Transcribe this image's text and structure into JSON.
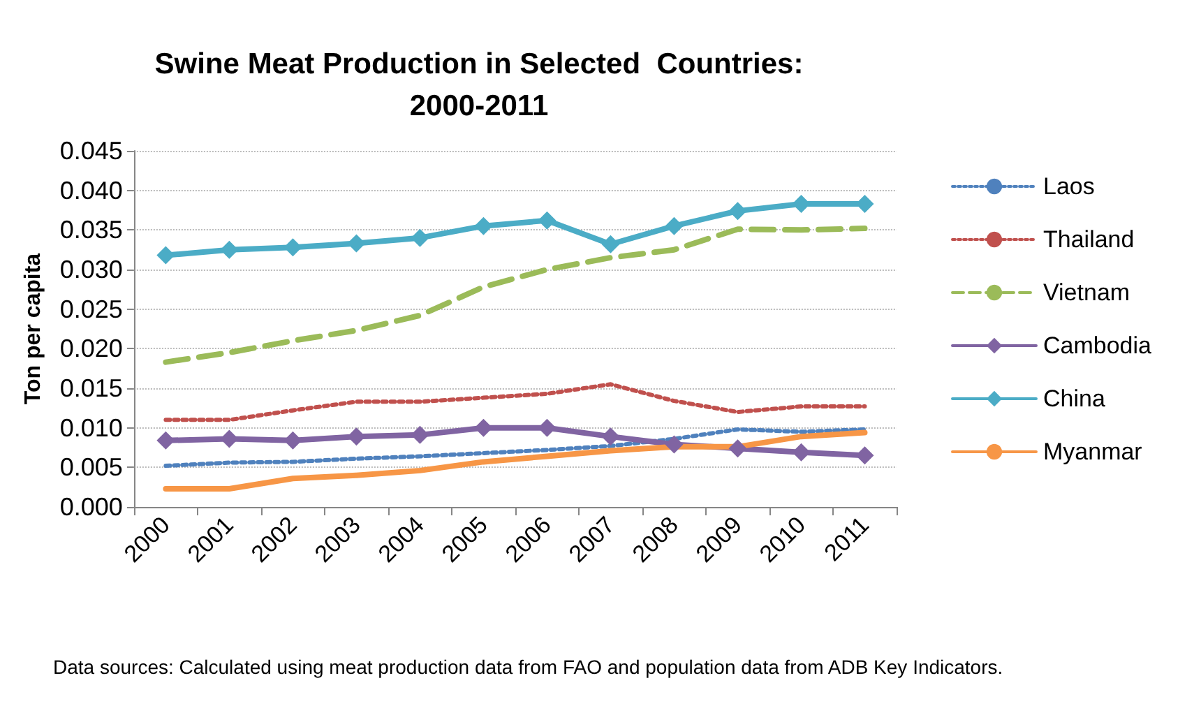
{
  "chart_data": {
    "type": "line",
    "title": "Swine Meat Production in Selected  Countries:\n2000-2011",
    "ylabel": "Ton per capita",
    "categories": [
      "2000",
      "2001",
      "2002",
      "2003",
      "2004",
      "2005",
      "2006",
      "2007",
      "2008",
      "2009",
      "2010",
      "2011"
    ],
    "series": [
      {
        "name": "Laos",
        "color": "#4f81bd",
        "line_style": "dotted",
        "marker": "none",
        "values": [
          0.0052,
          0.0056,
          0.0057,
          0.0061,
          0.0064,
          0.0068,
          0.0072,
          0.0077,
          0.0086,
          0.0098,
          0.0095,
          0.0098
        ]
      },
      {
        "name": "Thailand",
        "color": "#c0504d",
        "line_style": "dotted",
        "marker": "none",
        "values": [
          0.011,
          0.011,
          0.0122,
          0.0133,
          0.0133,
          0.0138,
          0.0143,
          0.0155,
          0.0134,
          0.012,
          0.0127,
          0.0127
        ]
      },
      {
        "name": "Vietnam",
        "color": "#9bbb59",
        "line_style": "dashed",
        "marker": "none",
        "values": [
          0.0183,
          0.0195,
          0.021,
          0.0223,
          0.0242,
          0.0278,
          0.03,
          0.0315,
          0.0325,
          0.0351,
          0.035,
          0.0352
        ]
      },
      {
        "name": "Cambodia",
        "color": "#8064a2",
        "line_style": "solid",
        "marker": "diamond",
        "values": [
          0.0084,
          0.0086,
          0.0084,
          0.0089,
          0.0091,
          0.01,
          0.01,
          0.0089,
          0.0079,
          0.0074,
          0.0069,
          0.0065
        ]
      },
      {
        "name": "China",
        "color": "#4bacc6",
        "line_style": "solid",
        "marker": "diamond",
        "values": [
          0.0318,
          0.0325,
          0.0328,
          0.0333,
          0.034,
          0.0355,
          0.0362,
          0.0332,
          0.0355,
          0.0374,
          0.0383,
          0.0383
        ]
      },
      {
        "name": "Myanmar",
        "color": "#f79646",
        "line_style": "solid",
        "marker": "none",
        "values": [
          0.0023,
          0.0023,
          0.0036,
          0.004,
          0.0046,
          0.0057,
          0.0064,
          0.0071,
          0.0076,
          0.0076,
          0.0089,
          0.0094
        ]
      }
    ],
    "ylim": [
      0,
      0.045
    ],
    "yticks": [
      {
        "value": 0,
        "label": "0.000"
      },
      {
        "value": 0.005,
        "label": "0.005"
      },
      {
        "value": 0.01,
        "label": "0.010"
      },
      {
        "value": 0.015,
        "label": "0.015"
      },
      {
        "value": 0.02,
        "label": "0.020"
      },
      {
        "value": 0.025,
        "label": "0.025"
      },
      {
        "value": 0.03,
        "label": "0.030"
      },
      {
        "value": 0.035,
        "label": "0.035"
      },
      {
        "value": 0.04,
        "label": "0.040"
      },
      {
        "value": 0.045,
        "label": "0.045"
      }
    ],
    "grid": "y",
    "legend": "right",
    "annotations": [
      "Data sources: Calculated using meat production data from FAO and population data from ADB Key Indicators."
    ]
  }
}
